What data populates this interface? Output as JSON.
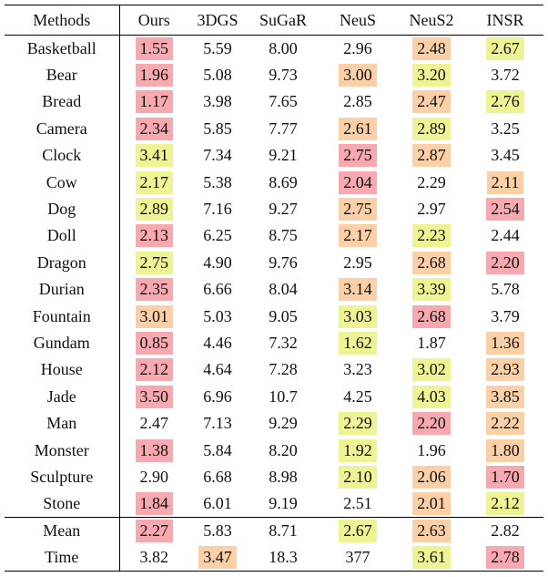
{
  "table": {
    "header": [
      "Methods",
      "Ours",
      "3DGS",
      "SuGaR",
      "NeuS",
      "NeuS2",
      "INSR"
    ],
    "rows": [
      {
        "cells": [
          "Basketball",
          "1.55",
          "5.59",
          "8.00",
          "2.96",
          "2.48",
          "2.67"
        ],
        "colors": [
          "#f8a9b0",
          null,
          null,
          null,
          "#fbd0a6",
          "#eef393"
        ]
      },
      {
        "cells": [
          "Bear",
          "1.96",
          "5.08",
          "9.73",
          "3.00",
          "3.20",
          "3.72"
        ],
        "colors": [
          "#f8a9b0",
          null,
          null,
          "#fbd0a6",
          "#eef393",
          null
        ]
      },
      {
        "cells": [
          "Bread",
          "1.17",
          "3.98",
          "7.65",
          "2.85",
          "2.47",
          "2.76"
        ],
        "colors": [
          "#f8a9b0",
          null,
          null,
          null,
          "#fbd0a6",
          "#eef393"
        ]
      },
      {
        "cells": [
          "Camera",
          "2.34",
          "5.85",
          "7.77",
          "2.61",
          "2.89",
          "3.25"
        ],
        "colors": [
          "#f8a9b0",
          null,
          null,
          "#fbd0a6",
          "#eef393",
          null
        ]
      },
      {
        "cells": [
          "Clock",
          "3.41",
          "7.34",
          "9.21",
          "2.75",
          "2.87",
          "3.45"
        ],
        "colors": [
          "#eef393",
          null,
          null,
          "#f8a9b0",
          "#fbd0a6",
          null
        ]
      },
      {
        "cells": [
          "Cow",
          "2.17",
          "5.38",
          "8.69",
          "2.04",
          "2.29",
          "2.11"
        ],
        "colors": [
          "#eef393",
          null,
          null,
          "#f8a9b0",
          null,
          "#fbd0a6"
        ]
      },
      {
        "cells": [
          "Dog",
          "2.89",
          "7.16",
          "9.27",
          "2.75",
          "2.97",
          "2.54"
        ],
        "colors": [
          "#eef393",
          null,
          null,
          "#fbd0a6",
          null,
          "#f8a9b0"
        ]
      },
      {
        "cells": [
          "Doll",
          "2.13",
          "6.25",
          "8.75",
          "2.17",
          "2.23",
          "2.44"
        ],
        "colors": [
          "#f8a9b0",
          null,
          null,
          "#fbd0a6",
          "#eef393",
          null
        ]
      },
      {
        "cells": [
          "Dragon",
          "2.75",
          "4.90",
          "9.76",
          "2.95",
          "2.68",
          "2.20"
        ],
        "colors": [
          "#eef393",
          null,
          null,
          null,
          "#fbd0a6",
          "#f8a9b0"
        ]
      },
      {
        "cells": [
          "Durian",
          "2.35",
          "6.66",
          "8.04",
          "3.14",
          "3.39",
          "5.78"
        ],
        "colors": [
          "#f8a9b0",
          null,
          null,
          "#fbd0a6",
          "#eef393",
          null
        ]
      },
      {
        "cells": [
          "Fountain",
          "3.01",
          "5.03",
          "9.05",
          "3.03",
          "2.68",
          "3.79"
        ],
        "colors": [
          "#fbd0a6",
          null,
          null,
          "#eef393",
          "#f8a9b0",
          null
        ]
      },
      {
        "cells": [
          "Gundam",
          "0.85",
          "4.46",
          "7.32",
          "1.62",
          "1.87",
          "1.36"
        ],
        "colors": [
          "#f8a9b0",
          null,
          null,
          "#eef393",
          null,
          "#fbd0a6"
        ]
      },
      {
        "cells": [
          "House",
          "2.12",
          "4.64",
          "7.28",
          "3.23",
          "3.02",
          "2.93"
        ],
        "colors": [
          "#f8a9b0",
          null,
          null,
          null,
          "#eef393",
          "#fbd0a6"
        ]
      },
      {
        "cells": [
          "Jade",
          "3.50",
          "6.96",
          "10.7",
          "4.25",
          "4.03",
          "3.85"
        ],
        "colors": [
          "#f8a9b0",
          null,
          null,
          null,
          "#eef393",
          "#fbd0a6"
        ]
      },
      {
        "cells": [
          "Man",
          "2.47",
          "7.13",
          "9.29",
          "2.29",
          "2.20",
          "2.22"
        ],
        "colors": [
          null,
          null,
          null,
          "#eef393",
          "#f8a9b0",
          "#fbd0a6"
        ]
      },
      {
        "cells": [
          "Monster",
          "1.38",
          "5.84",
          "8.20",
          "1.92",
          "1.96",
          "1.80"
        ],
        "colors": [
          "#f8a9b0",
          null,
          null,
          "#eef393",
          null,
          "#fbd0a6"
        ]
      },
      {
        "cells": [
          "Sculpture",
          "2.90",
          "6.68",
          "8.98",
          "2.10",
          "2.06",
          "1.70"
        ],
        "colors": [
          null,
          null,
          null,
          "#eef393",
          "#fbd0a6",
          "#f8a9b0"
        ]
      },
      {
        "cells": [
          "Stone",
          "1.84",
          "6.01",
          "9.19",
          "2.51",
          "2.01",
          "2.12"
        ],
        "colors": [
          "#f8a9b0",
          null,
          null,
          null,
          "#fbd0a6",
          "#eef393"
        ]
      }
    ],
    "summary_rows": [
      {
        "cells": [
          "Mean",
          "2.27",
          "5.83",
          "8.71",
          "2.67",
          "2.63",
          "2.82"
        ],
        "colors": [
          "#f8a9b0",
          null,
          null,
          "#eef393",
          "#fbd0a6",
          null
        ]
      },
      {
        "cells": [
          "Time",
          "3.82",
          "3.47",
          "18.3",
          "377",
          "3.61",
          "2.78"
        ],
        "colors": [
          null,
          "#fbd0a6",
          null,
          null,
          "#eef393",
          "#f8a9b0"
        ]
      }
    ]
  }
}
